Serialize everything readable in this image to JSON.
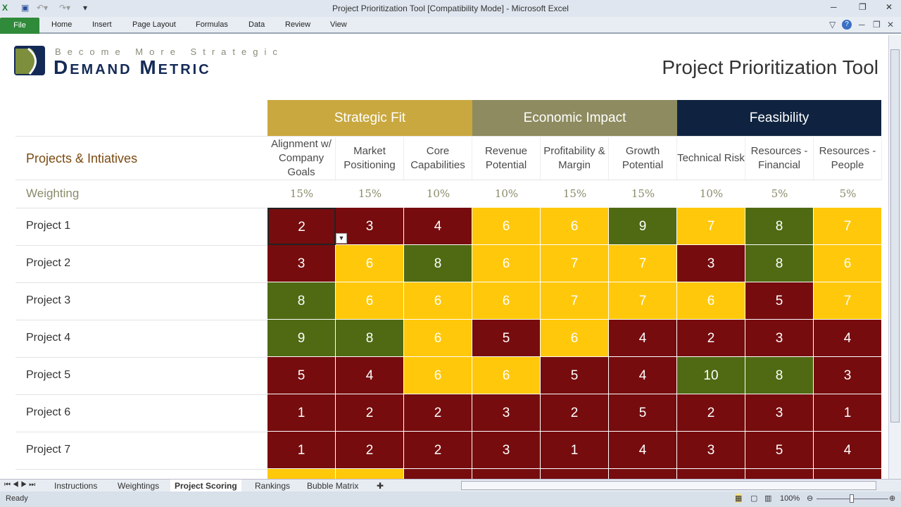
{
  "window": {
    "title": "Project Prioritization Tool  [Compatibility Mode]  -  Microsoft Excel"
  },
  "ribbon": {
    "file": "File",
    "tabs": [
      "Home",
      "Insert",
      "Page Layout",
      "Formulas",
      "Data",
      "Review",
      "View"
    ]
  },
  "logo": {
    "tagline": "Become More Strategic",
    "brand": "Demand Metric"
  },
  "page_title": "Project Prioritization Tool",
  "groups": [
    {
      "label": "Strategic Fit",
      "color": "#c9a83f"
    },
    {
      "label": "Economic Impact",
      "color": "#8d8b5f"
    },
    {
      "label": "Feasibility",
      "color": "#0f2340"
    }
  ],
  "row_header": "Projects & Intiatives",
  "weighting_label": "Weighting",
  "criteria": [
    "Alignment w/ Company Goals",
    "Market Positioning",
    "Core Capabilities",
    "Revenue Potential",
    "Profitability & Margin",
    "Growth Potential",
    "Technical Risk",
    "Resources - Financial",
    "Resources - People"
  ],
  "weights": [
    "15%",
    "15%",
    "10%",
    "10%",
    "15%",
    "15%",
    "10%",
    "5%",
    "5%"
  ],
  "projects": [
    {
      "name": "Project 1",
      "scores": [
        "2",
        "3",
        "4",
        "6",
        "6",
        "9",
        "7",
        "8",
        "7"
      ],
      "colors": [
        "r",
        "r",
        "r",
        "y",
        "y",
        "g",
        "y",
        "g",
        "y"
      ]
    },
    {
      "name": "Project 2",
      "scores": [
        "3",
        "6",
        "8",
        "6",
        "7",
        "7",
        "3",
        "8",
        "6"
      ],
      "colors": [
        "r",
        "y",
        "g",
        "y",
        "y",
        "y",
        "r",
        "g",
        "y"
      ]
    },
    {
      "name": "Project 3",
      "scores": [
        "8",
        "6",
        "6",
        "6",
        "7",
        "7",
        "6",
        "5",
        "7"
      ],
      "colors": [
        "g",
        "y",
        "y",
        "y",
        "y",
        "y",
        "y",
        "r",
        "y"
      ]
    },
    {
      "name": "Project 4",
      "scores": [
        "9",
        "8",
        "6",
        "5",
        "6",
        "4",
        "2",
        "3",
        "4"
      ],
      "colors": [
        "g",
        "g",
        "y",
        "r",
        "y",
        "r",
        "r",
        "r",
        "r"
      ]
    },
    {
      "name": "Project 5",
      "scores": [
        "5",
        "4",
        "6",
        "6",
        "5",
        "4",
        "10",
        "8",
        "3"
      ],
      "colors": [
        "r",
        "r",
        "y",
        "y",
        "r",
        "r",
        "g",
        "g",
        "r"
      ]
    },
    {
      "name": "Project 6",
      "scores": [
        "1",
        "2",
        "2",
        "3",
        "2",
        "5",
        "2",
        "3",
        "1"
      ],
      "colors": [
        "r",
        "r",
        "r",
        "r",
        "r",
        "r",
        "r",
        "r",
        "r"
      ]
    },
    {
      "name": "Project 7",
      "scores": [
        "1",
        "2",
        "2",
        "3",
        "1",
        "4",
        "3",
        "5",
        "4"
      ],
      "colors": [
        "r",
        "r",
        "r",
        "r",
        "r",
        "r",
        "r",
        "r",
        "r"
      ]
    }
  ],
  "partial_row_colors": [
    "y",
    "y",
    "r",
    "r",
    "r",
    "r",
    "r",
    "r",
    "r"
  ],
  "sheet_tabs": [
    "Instructions",
    "Weightings",
    "Project Scoring",
    "Rankings",
    "Bubble Matrix"
  ],
  "active_sheet": "Project Scoring",
  "status": {
    "text": "Ready",
    "zoom": "100%"
  }
}
